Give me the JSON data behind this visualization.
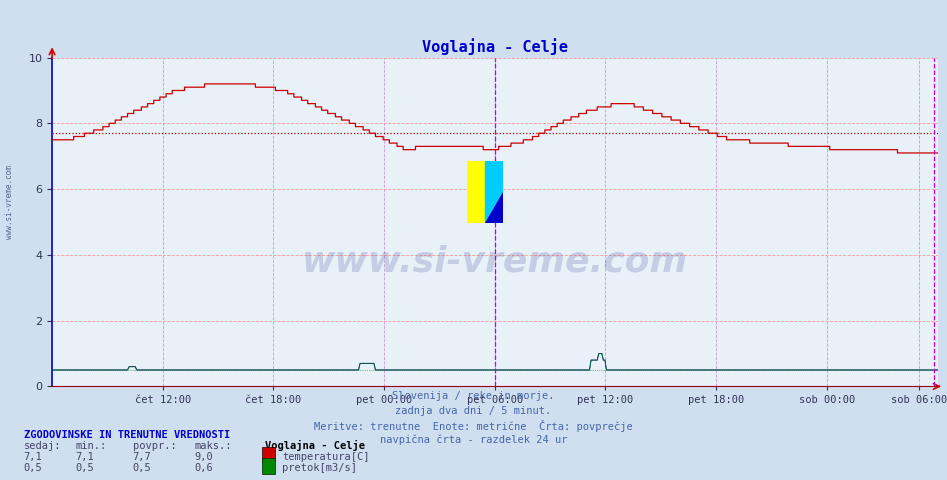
{
  "title": "Voglajna - Celje",
  "title_color": "#0000cc",
  "bg_color": "#d0dff0",
  "plot_bg_color": "#e8f0f8",
  "grid_color_h": "#ff9999",
  "grid_color_v": "#cc99cc",
  "xlim": [
    0,
    576
  ],
  "ylim": [
    0,
    10
  ],
  "yticks": [
    0,
    2,
    4,
    6,
    8,
    10
  ],
  "xtick_labels": [
    "čet 12:00",
    "čet 18:00",
    "pet 00:00",
    "pet 06:00",
    "pet 12:00",
    "pet 18:00",
    "sob 00:00",
    "sob 06:00"
  ],
  "xtick_positions": [
    72,
    144,
    216,
    288,
    360,
    432,
    504,
    564
  ],
  "avg_temp": 7.7,
  "avg_flow": 0.5,
  "vertical_line1_x": 288,
  "vertical_line2_x": 574,
  "watermark": "www.si-vreme.com",
  "subtitle_lines": [
    "Slovenija / reke in morje.",
    "zadnja dva dni / 5 minut.",
    "Meritve: trenutne  Enote: metrične  Črta: povprečje",
    "navpična črta - razdelek 24 ur"
  ],
  "legend_title": "Voglajna - Celje",
  "legend_items": [
    "temperatura[C]",
    "pretok[m3/s]"
  ],
  "legend_colors": [
    "#cc0000",
    "#008800"
  ],
  "stats_title": "ZGODOVINSKE IN TRENUTNE VREDNOSTI",
  "stats_headers": [
    "sedaj:",
    "min.:",
    "povpr.:",
    "maks.:"
  ],
  "stats_temp": [
    "7,1",
    "7,1",
    "7,7",
    "9,0"
  ],
  "stats_flow": [
    "0,5",
    "0,5",
    "0,5",
    "0,6"
  ],
  "left_label": "www.si-vreme.com",
  "temp_color": "#cc0000",
  "flow_color": "#008800",
  "flow_blue_color": "#000088",
  "axis_color": "#0000cc",
  "logo_yellow": "#ffff00",
  "logo_cyan": "#00ccff",
  "logo_blue": "#0000cc"
}
